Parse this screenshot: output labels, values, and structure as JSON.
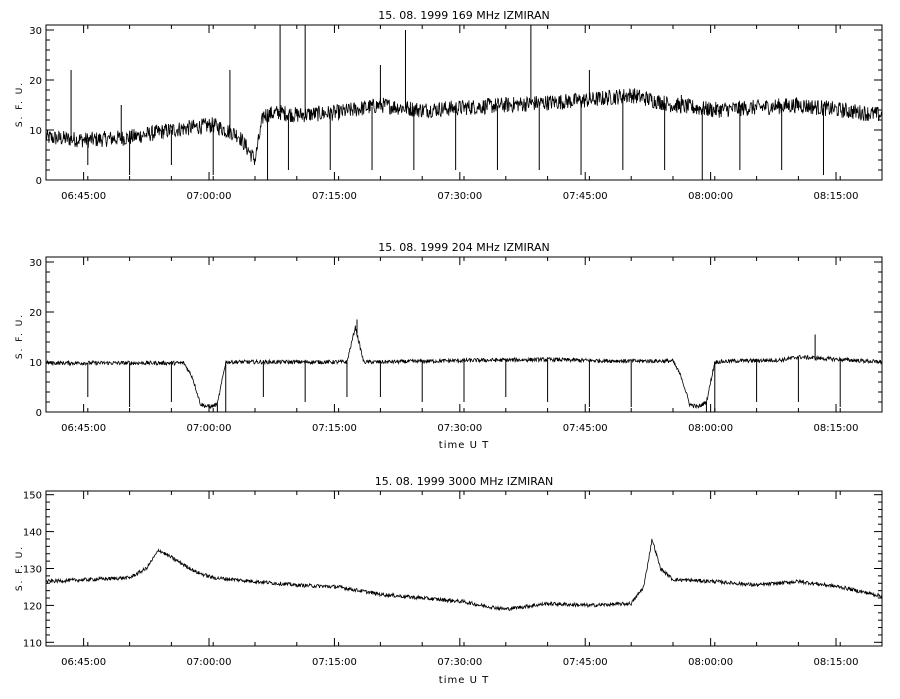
{
  "chart_data": [
    {
      "type": "line",
      "title": "15. 08. 1999    169 MHz    IZMIRAN",
      "ylabel": "S. F. U.",
      "xlabel": "",
      "x_tick_labels": [
        "06:45:00",
        "07:00:00",
        "07:15:00",
        "07:30:00",
        "07:45:00",
        "08:00:00",
        "08:15:00"
      ],
      "x_range": [
        "06:40:30",
        "08:20:30"
      ],
      "y_ticks": [
        0,
        10,
        20,
        30
      ],
      "ylim": [
        0,
        31
      ],
      "noise": 1.6,
      "series": [
        {
          "x_minutes_from_0640": [
            0,
            5,
            10,
            15,
            20,
            23,
            25,
            26,
            28,
            30,
            35,
            40,
            45,
            50,
            55,
            60,
            65,
            70,
            75,
            80,
            85,
            90,
            95,
            100
          ],
          "values": [
            8.5,
            8,
            8.5,
            10,
            11,
            9,
            4,
            13,
            13.5,
            13,
            13.5,
            15,
            14,
            14.5,
            15,
            15.5,
            16,
            17,
            15,
            14,
            14.5,
            15,
            14,
            13
          ]
        }
      ],
      "spikes": [
        {
          "x": 3,
          "value": 22
        },
        {
          "x": 9,
          "value": 15
        },
        {
          "x": 22,
          "value": 22
        },
        {
          "x": 28,
          "value": 31
        },
        {
          "x": 31,
          "value": 31
        },
        {
          "x": 40,
          "value": 23
        },
        {
          "x": 43,
          "value": 30
        },
        {
          "x": 58,
          "value": 31
        },
        {
          "x": 65,
          "value": 22
        },
        {
          "x": 76,
          "value": 17
        }
      ],
      "dips": [
        {
          "x": 5,
          "value": 3
        },
        {
          "x": 10,
          "value": 1
        },
        {
          "x": 15,
          "value": 3
        },
        {
          "x": 20,
          "value": 1
        },
        {
          "x": 26.5,
          "value": 0
        },
        {
          "x": 29,
          "value": 2
        },
        {
          "x": 34,
          "value": 2
        },
        {
          "x": 39,
          "value": 2
        },
        {
          "x": 44,
          "value": 2
        },
        {
          "x": 49,
          "value": 2
        },
        {
          "x": 54,
          "value": 2
        },
        {
          "x": 59,
          "value": 2
        },
        {
          "x": 64,
          "value": 1
        },
        {
          "x": 69,
          "value": 2
        },
        {
          "x": 74,
          "value": 2
        },
        {
          "x": 78.5,
          "value": 0
        },
        {
          "x": 83,
          "value": 2
        },
        {
          "x": 88,
          "value": 2
        },
        {
          "x": 93,
          "value": 1
        }
      ]
    },
    {
      "type": "line",
      "title": "15. 08. 1999    204 MHz    IZMIRAN",
      "ylabel": "S. F. U.",
      "xlabel": "time  U T",
      "x_tick_labels": [
        "06:45:00",
        "07:00:00",
        "07:15:00",
        "07:30:00",
        "07:45:00",
        "08:00:00",
        "08:15:00"
      ],
      "x_range": [
        "06:40:30",
        "08:20:30"
      ],
      "y_ticks": [
        0,
        10,
        20,
        30
      ],
      "ylim": [
        0,
        31
      ],
      "noise": 0.4,
      "series": [
        {
          "x_minutes_from_0640": [
            0,
            16.5,
            17.5,
            18.5,
            19.5,
            20.5,
            21.5,
            30,
            36,
            37,
            38,
            40,
            50,
            60,
            65,
            70,
            75,
            76,
            77,
            78,
            79,
            80,
            82,
            88,
            90,
            100
          ],
          "values": [
            9.8,
            9.8,
            7,
            1.5,
            1,
            1.5,
            10,
            10,
            10,
            17,
            10,
            10,
            10.3,
            10.5,
            10.3,
            10.2,
            10.2,
            7,
            1.5,
            1,
            2,
            10,
            10.2,
            10.4,
            11,
            10
          ]
        }
      ],
      "spikes": [
        {
          "x": 37.2,
          "value": 18.5
        },
        {
          "x": 92,
          "value": 15.5
        }
      ],
      "dips": [
        {
          "x": 5,
          "value": 3
        },
        {
          "x": 10,
          "value": 1
        },
        {
          "x": 15,
          "value": 2
        },
        {
          "x": 20.5,
          "value": 0
        },
        {
          "x": 21.5,
          "value": 0
        },
        {
          "x": 26,
          "value": 3
        },
        {
          "x": 31,
          "value": 2
        },
        {
          "x": 36,
          "value": 3
        },
        {
          "x": 40,
          "value": 3
        },
        {
          "x": 45,
          "value": 2
        },
        {
          "x": 50,
          "value": 2
        },
        {
          "x": 55,
          "value": 3
        },
        {
          "x": 60,
          "value": 2
        },
        {
          "x": 65,
          "value": 1
        },
        {
          "x": 70,
          "value": 1
        },
        {
          "x": 79,
          "value": 0
        },
        {
          "x": 80,
          "value": 0
        },
        {
          "x": 85,
          "value": 2
        },
        {
          "x": 90,
          "value": 2
        },
        {
          "x": 95,
          "value": 1
        }
      ]
    },
    {
      "type": "line",
      "title": "15. 08. 1999    3000 MHz    IZMIRAN",
      "ylabel": "S. F. U.",
      "xlabel": "time  U T",
      "x_tick_labels": [
        "06:45:00",
        "07:00:00",
        "07:15:00",
        "07:30:00",
        "07:45:00",
        "08:00:00",
        "08:15:00"
      ],
      "x_range": [
        "06:40:30",
        "08:20:30"
      ],
      "y_ticks": [
        110,
        120,
        130,
        140,
        150
      ],
      "ylim": [
        109,
        151
      ],
      "noise": 0.5,
      "series": [
        {
          "x_minutes_from_0640": [
            0,
            5,
            10,
            12,
            13.5,
            15,
            18,
            20,
            25,
            30,
            35,
            40,
            45,
            50,
            52,
            55,
            60,
            65,
            70,
            71.5,
            72.5,
            73.5,
            75,
            80,
            85,
            90,
            95,
            100
          ],
          "values": [
            126.5,
            127,
            127.5,
            130,
            135,
            133,
            129,
            127.5,
            126.5,
            125.5,
            125,
            123,
            122,
            121,
            120,
            119,
            120.5,
            120,
            120.5,
            125,
            138,
            130,
            127,
            126.5,
            125.5,
            126.5,
            125,
            122.5
          ]
        }
      ],
      "spikes": [],
      "dips": []
    }
  ]
}
